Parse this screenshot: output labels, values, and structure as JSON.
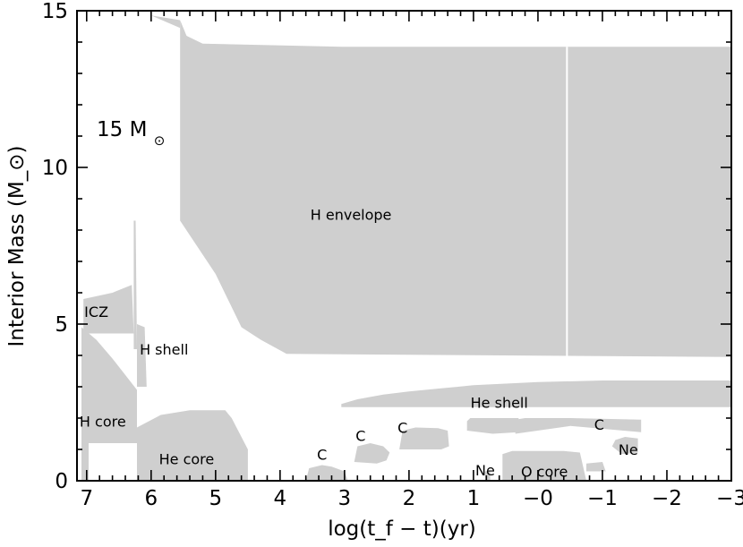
{
  "chart_data": {
    "type": "area",
    "title": "",
    "xlabel": "log(t_f − t)(yr)",
    "ylabel": "Interior Mass (M_⊙)",
    "xlim": [
      7.15,
      -3.0
    ],
    "ylim": [
      0,
      15
    ],
    "x_axis_reversed": true,
    "x_ticks": [
      "7",
      "6",
      "5",
      "4",
      "3",
      "2",
      "1",
      "−0",
      "−1",
      "−2",
      "−3"
    ],
    "y_ticks": [
      "0",
      "5",
      "10",
      "15"
    ],
    "annotation": {
      "text": "15  M",
      "symbol": "⊙"
    },
    "region_labels": [
      {
        "name": "region-h-envelope",
        "text": "H  envelope",
        "x": 2.9,
        "y": 8.5
      },
      {
        "name": "region-icz",
        "text": "ICZ",
        "x": 6.85,
        "y": 5.4
      },
      {
        "name": "region-h-shell",
        "text": "H  shell",
        "x": 5.8,
        "y": 4.2
      },
      {
        "name": "region-h-core",
        "text": "H  core",
        "x": 6.75,
        "y": 1.9
      },
      {
        "name": "region-he-core",
        "text": "He  core",
        "x": 5.45,
        "y": 0.7
      },
      {
        "name": "region-he-shell",
        "text": "He  shell",
        "x": 0.6,
        "y": 2.5
      },
      {
        "name": "region-o-core",
        "text": "O  core",
        "x": -0.1,
        "y": 0.3
      },
      {
        "name": "region-ne-1",
        "text": "Ne",
        "x": 0.82,
        "y": 0.35
      },
      {
        "name": "region-ne-2",
        "text": "Ne",
        "x": -1.4,
        "y": 1.0
      },
      {
        "name": "region-c-1",
        "text": "C",
        "x": 3.35,
        "y": 0.85
      },
      {
        "name": "region-c-2",
        "text": "C",
        "x": 2.75,
        "y": 1.45
      },
      {
        "name": "region-c-3",
        "text": "C",
        "x": 2.1,
        "y": 1.7
      },
      {
        "name": "region-c-4",
        "text": "C",
        "x": -0.95,
        "y": 1.8
      }
    ],
    "zones": [
      {
        "name": "h-envelope",
        "points": [
          [
            5.55,
            14.7
          ],
          [
            5.55,
            8.3
          ],
          [
            5.0,
            6.6
          ],
          [
            4.6,
            4.9
          ],
          [
            4.3,
            4.5
          ],
          [
            3.9,
            4.05
          ],
          [
            -3.0,
            3.95
          ],
          [
            -3.0,
            13.85
          ],
          [
            3.0,
            13.85
          ],
          [
            5.2,
            13.95
          ],
          [
            5.45,
            14.2
          ],
          [
            5.55,
            14.7
          ]
        ]
      },
      {
        "name": "h-envelope-top-sliver",
        "points": [
          [
            6.0,
            14.85
          ],
          [
            5.55,
            14.7
          ],
          [
            5.55,
            14.45
          ],
          [
            6.0,
            14.85
          ]
        ]
      },
      {
        "name": "icz",
        "points": [
          [
            7.05,
            5.8
          ],
          [
            6.6,
            6.0
          ],
          [
            6.3,
            6.25
          ],
          [
            6.27,
            4.7
          ],
          [
            7.05,
            4.7
          ]
        ]
      },
      {
        "name": "h-shell-spike",
        "points": [
          [
            6.27,
            8.3
          ],
          [
            6.24,
            8.3
          ],
          [
            6.22,
            4.2
          ],
          [
            6.27,
            4.2
          ]
        ]
      },
      {
        "name": "h-shell",
        "points": [
          [
            6.22,
            5.0
          ],
          [
            6.1,
            4.9
          ],
          [
            6.07,
            3.0
          ],
          [
            6.22,
            3.0
          ]
        ]
      },
      {
        "name": "h-core",
        "points": [
          [
            7.08,
            4.9
          ],
          [
            6.85,
            4.5
          ],
          [
            6.6,
            3.9
          ],
          [
            6.22,
            2.9
          ],
          [
            6.22,
            1.2
          ],
          [
            6.85,
            1.2
          ],
          [
            7.08,
            1.2
          ]
        ]
      },
      {
        "name": "h-core-stem",
        "points": [
          [
            7.08,
            1.2
          ],
          [
            6.97,
            1.2
          ],
          [
            6.97,
            0
          ],
          [
            7.08,
            0
          ]
        ]
      },
      {
        "name": "he-core",
        "points": [
          [
            6.22,
            1.7
          ],
          [
            5.85,
            2.1
          ],
          [
            5.4,
            2.25
          ],
          [
            4.85,
            2.25
          ],
          [
            4.75,
            2.0
          ],
          [
            4.5,
            1.0
          ],
          [
            4.5,
            0
          ],
          [
            6.22,
            0
          ]
        ]
      },
      {
        "name": "he-shell",
        "points": [
          [
            3.05,
            2.35
          ],
          [
            3.05,
            2.45
          ],
          [
            2.8,
            2.6
          ],
          [
            2.4,
            2.75
          ],
          [
            2.0,
            2.85
          ],
          [
            1.5,
            2.95
          ],
          [
            1.0,
            3.05
          ],
          [
            0.0,
            3.15
          ],
          [
            -1.0,
            3.2
          ],
          [
            -3.0,
            3.2
          ],
          [
            -3.0,
            2.35
          ]
        ]
      },
      {
        "name": "carbon-shell-1",
        "points": [
          [
            3.6,
            0
          ],
          [
            3.55,
            0.4
          ],
          [
            3.35,
            0.5
          ],
          [
            3.2,
            0.45
          ],
          [
            3.0,
            0.3
          ],
          [
            2.95,
            0
          ],
          [
            3.6,
            0
          ]
        ]
      },
      {
        "name": "carbon-shell-2",
        "points": [
          [
            2.85,
            0.6
          ],
          [
            2.8,
            1.1
          ],
          [
            2.6,
            1.2
          ],
          [
            2.4,
            1.1
          ],
          [
            2.3,
            0.9
          ],
          [
            2.35,
            0.65
          ],
          [
            2.5,
            0.55
          ]
        ]
      },
      {
        "name": "carbon-shell-3",
        "points": [
          [
            2.15,
            1.0
          ],
          [
            2.1,
            1.6
          ],
          [
            1.9,
            1.7
          ],
          [
            1.55,
            1.68
          ],
          [
            1.4,
            1.6
          ],
          [
            1.38,
            1.1
          ],
          [
            1.5,
            1.0
          ]
        ]
      },
      {
        "name": "carbon-shell-4",
        "points": [
          [
            1.1,
            1.9
          ],
          [
            1.05,
            2.0
          ],
          [
            0.7,
            2.0
          ],
          [
            0.3,
            2.0
          ],
          [
            0.3,
            1.55
          ],
          [
            0.7,
            1.5
          ],
          [
            1.1,
            1.6
          ]
        ]
      },
      {
        "name": "carbon-shell-5",
        "points": [
          [
            0.35,
            1.95
          ],
          [
            0.2,
            2.0
          ],
          [
            -0.5,
            2.0
          ],
          [
            -1.6,
            1.95
          ],
          [
            -1.6,
            1.55
          ],
          [
            -0.5,
            1.75
          ],
          [
            0.35,
            1.5
          ]
        ]
      },
      {
        "name": "neon-core",
        "points": [
          [
            0.82,
            0
          ],
          [
            0.82,
            0.3
          ],
          [
            0.74,
            0.3
          ],
          [
            0.74,
            0
          ]
        ]
      },
      {
        "name": "oxygen-core",
        "points": [
          [
            0.55,
            0
          ],
          [
            0.55,
            0.85
          ],
          [
            0.4,
            0.95
          ],
          [
            -0.4,
            0.95
          ],
          [
            -0.65,
            0.9
          ],
          [
            -0.75,
            0
          ],
          [
            0.55,
            0
          ]
        ]
      },
      {
        "name": "neon-shell",
        "points": [
          [
            -1.15,
            1.1
          ],
          [
            -1.2,
            1.3
          ],
          [
            -1.35,
            1.4
          ],
          [
            -1.55,
            1.35
          ],
          [
            -1.55,
            0.9
          ],
          [
            -1.3,
            0.85
          ]
        ]
      },
      {
        "name": "o-core-tail",
        "points": [
          [
            -0.75,
            0.55
          ],
          [
            -1.0,
            0.6
          ],
          [
            -1.05,
            0.3
          ],
          [
            -0.75,
            0.3
          ]
        ]
      }
    ]
  }
}
